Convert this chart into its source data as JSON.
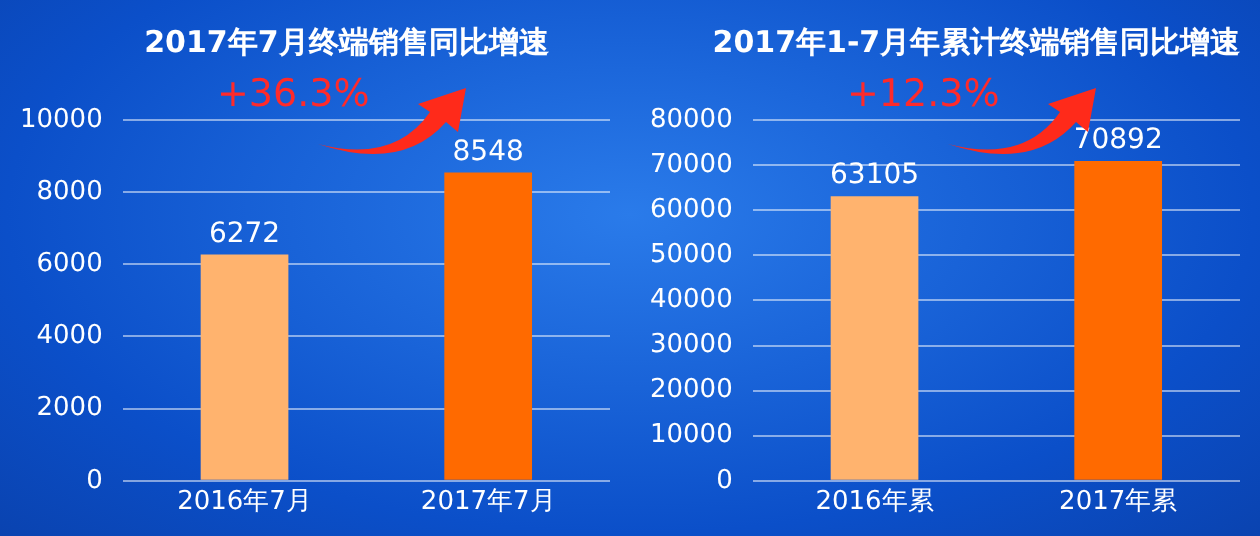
{
  "chart_data": [
    {
      "type": "bar",
      "title": "2017年7月终端销售同比增速",
      "categories": [
        "2016年7月",
        "2017年7月"
      ],
      "values": [
        6272,
        8548
      ],
      "colors": [
        "#ffb36e",
        "#ff6a00"
      ],
      "ylim": [
        0,
        10000
      ],
      "yticks": [
        0,
        2000,
        4000,
        6000,
        8000,
        10000
      ],
      "grid": "y",
      "data_labels": true,
      "annotations": [
        "+36.3%"
      ]
    },
    {
      "type": "bar",
      "title": "2017年1-7月年累计终端销售同比增速",
      "categories": [
        "2016年累",
        "2017年累"
      ],
      "values": [
        63105,
        70892
      ],
      "colors": [
        "#ffb36e",
        "#ff6a00"
      ],
      "ylim": [
        0,
        80000
      ],
      "yticks": [
        0,
        10000,
        20000,
        30000,
        40000,
        50000,
        60000,
        70000,
        80000
      ],
      "grid": "y",
      "data_labels": true,
      "annotations": [
        "+12.3%"
      ]
    }
  ]
}
